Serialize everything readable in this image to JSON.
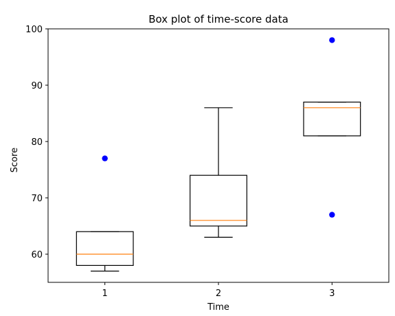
{
  "chart_data": {
    "type": "box",
    "title": "Box plot of time-score data",
    "xlabel": "Time",
    "ylabel": "Score",
    "categories": [
      "1",
      "2",
      "3"
    ],
    "xlim": [
      0.5,
      3.5
    ],
    "ylim": [
      55,
      100
    ],
    "yticks": [
      60,
      70,
      80,
      90,
      100
    ],
    "grid": false,
    "boxes": [
      {
        "category": "1",
        "whisker_low": 57,
        "q1": 58,
        "median": 60,
        "q3": 64,
        "whisker_high": 64,
        "outliers": [
          77
        ]
      },
      {
        "category": "2",
        "whisker_low": 63,
        "q1": 65,
        "median": 66,
        "q3": 74,
        "whisker_high": 86,
        "outliers": []
      },
      {
        "category": "3",
        "whisker_low": 81,
        "q1": 81,
        "median": 86,
        "q3": 87,
        "whisker_high": 87,
        "outliers": [
          98,
          67
        ]
      }
    ],
    "colors": {
      "box": "#000000",
      "median": "#ff7f0e",
      "outlier": "#0000ff"
    }
  }
}
